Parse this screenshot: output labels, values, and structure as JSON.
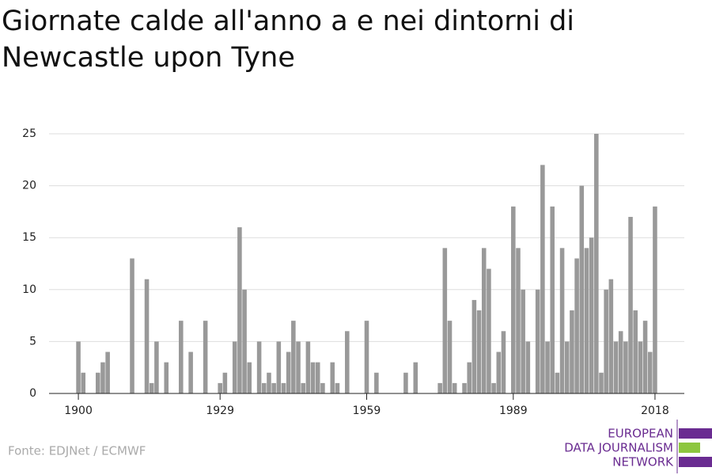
{
  "chart_data": {
    "type": "bar",
    "title": "Giornate calde all'anno a e nei dintorni di Newcastle upon Tyne",
    "source": "Fonte: EDJNet / ECMWF",
    "logo": [
      "EUROPEAN",
      "DATA JOURNALISM",
      "NETWORK"
    ],
    "color": "#999999",
    "x": [
      1900,
      1901,
      1904,
      1905,
      1906,
      1911,
      1914,
      1915,
      1916,
      1918,
      1921,
      1923,
      1926,
      1929,
      1930,
      1932,
      1933,
      1934,
      1935,
      1937,
      1938,
      1939,
      1940,
      1941,
      1942,
      1943,
      1944,
      1945,
      1946,
      1947,
      1948,
      1949,
      1950,
      1952,
      1953,
      1955,
      1959,
      1961,
      1967,
      1969,
      1974,
      1975,
      1976,
      1977,
      1979,
      1980,
      1981,
      1982,
      1983,
      1984,
      1985,
      1986,
      1987,
      1989,
      1990,
      1991,
      1992,
      1994,
      1995,
      1996,
      1997,
      1998,
      1999,
      2000,
      2001,
      2002,
      2003,
      2004,
      2005,
      2006,
      2007,
      2008,
      2009,
      2010,
      2011,
      2012,
      2013,
      2014,
      2015,
      2016,
      2017,
      2018
    ],
    "values": [
      5,
      2,
      2,
      3,
      4,
      13,
      11,
      1,
      5,
      3,
      7,
      4,
      7,
      1,
      2,
      5,
      16,
      10,
      3,
      5,
      1,
      2,
      1,
      5,
      1,
      4,
      7,
      5,
      1,
      5,
      3,
      3,
      1,
      3,
      1,
      6,
      7,
      2,
      2,
      3,
      1,
      14,
      7,
      1,
      1,
      3,
      9,
      8,
      14,
      12,
      1,
      4,
      6,
      18,
      14,
      10,
      5,
      10,
      22,
      5,
      18,
      2,
      14,
      5,
      8,
      13,
      20,
      14,
      15,
      25,
      2,
      10,
      11,
      5,
      6,
      5,
      17,
      8,
      5,
      7,
      4,
      18
    ],
    "xlim": [
      1894,
      2024
    ],
    "xticks": [
      1900,
      1929,
      1959,
      1989,
      2018
    ],
    "ylim": [
      0,
      25
    ],
    "yticks": [
      0,
      5,
      10,
      15,
      20,
      25
    ],
    "grid": true
  }
}
